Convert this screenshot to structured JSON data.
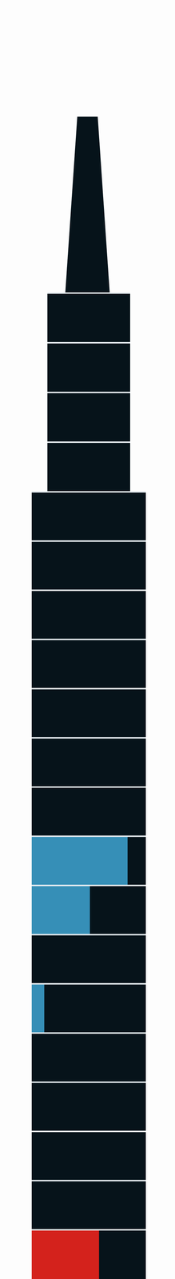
{
  "chart_data": {
    "type": "bar",
    "orientation": "horizontal",
    "tick_labels": false,
    "categories": [
      null,
      null,
      null,
      null,
      null,
      null,
      null,
      null,
      null,
      null,
      null,
      null,
      null,
      null,
      null,
      null,
      null,
      null,
      null,
      null
    ],
    "values": [
      0,
      0,
      0,
      0,
      0,
      0,
      0,
      0,
      0,
      0,
      0,
      84,
      51,
      0,
      11,
      0,
      0,
      0,
      0,
      59
    ],
    "colors": [
      "#368fb7",
      "#368fb7",
      "#368fb7",
      "#368fb7",
      "#368fb7",
      "#368fb7",
      "#368fb7",
      "#368fb7",
      "#368fb7",
      "#368fb7",
      "#368fb7",
      "#368fb7",
      "#368fb7",
      "#368fb7",
      "#368fb7",
      "#368fb7",
      "#368fb7",
      "#368fb7",
      "#368fb7",
      "#d4221c"
    ],
    "xlim": [
      0,
      100
    ]
  }
}
